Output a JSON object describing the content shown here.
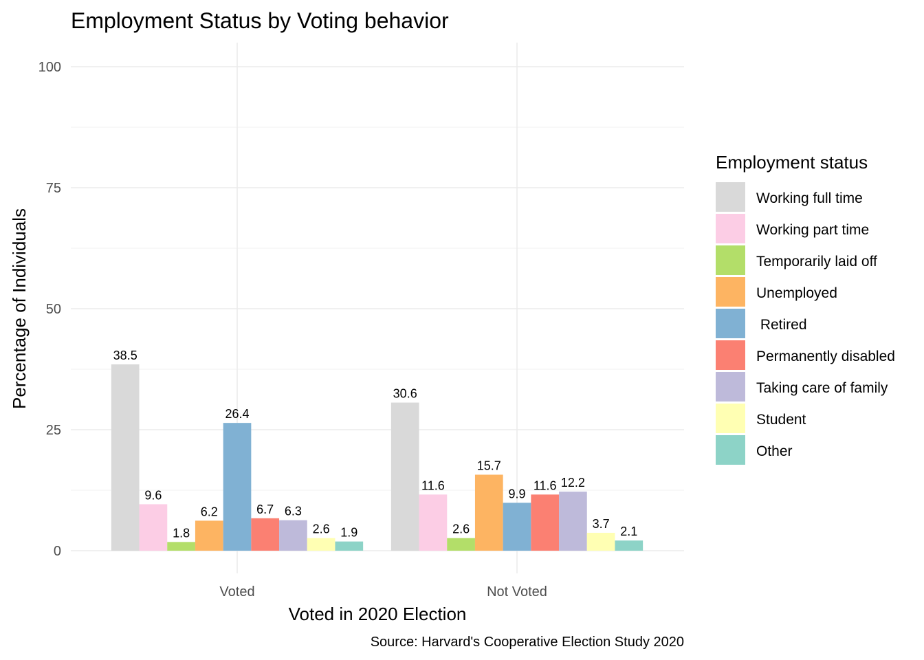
{
  "chart_data": {
    "type": "bar",
    "title": "Employment Status by Voting behavior",
    "xlabel": "Voted in 2020 Election",
    "ylabel": "Percentage of Individuals",
    "caption": "Source: Harvard's Cooperative Election Study 2020",
    "categories": [
      "Voted",
      "Not Voted"
    ],
    "ylim": [
      0,
      100
    ],
    "yticks": [
      0,
      25,
      50,
      75,
      100
    ],
    "grid": true,
    "legend": {
      "title": "Employment status",
      "position": "right"
    },
    "series": [
      {
        "name": "Working full time",
        "color": "#d9d9d9",
        "values": [
          38.5,
          30.6
        ]
      },
      {
        "name": "Working part time",
        "color": "#fccde5",
        "values": [
          9.6,
          11.6
        ]
      },
      {
        "name": "Temporarily laid off",
        "color": "#b3de69",
        "values": [
          1.8,
          2.6
        ]
      },
      {
        "name": "Unemployed",
        "color": "#fdb462",
        "values": [
          6.2,
          15.7
        ]
      },
      {
        "name": " Retired",
        "color": "#80b1d3",
        "values": [
          26.4,
          9.9
        ]
      },
      {
        "name": "Permanently disabled",
        "color": "#fb8072",
        "values": [
          6.7,
          11.6
        ]
      },
      {
        "name": "Taking care of family",
        "color": "#bebada",
        "values": [
          6.3,
          12.2
        ]
      },
      {
        "name": "Student",
        "color": "#ffffb3",
        "values": [
          2.6,
          3.7
        ]
      },
      {
        "name": "Other",
        "color": "#8dd3c7",
        "values": [
          1.9,
          2.1
        ]
      }
    ]
  }
}
